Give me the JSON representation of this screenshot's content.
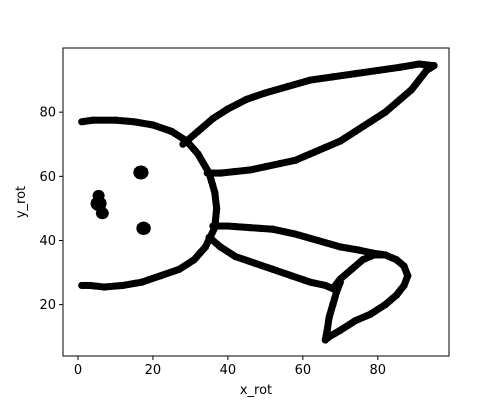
{
  "chart_data": {
    "type": "scatter",
    "title": "",
    "xlabel": "x_rot",
    "ylabel": "y_rot",
    "xlim": [
      -4,
      99
    ],
    "ylim": [
      4,
      100
    ],
    "xticks": [
      0,
      20,
      40,
      60,
      80
    ],
    "yticks": [
      20,
      40,
      60,
      80
    ],
    "grid": false,
    "marker_color": "#000000",
    "strokes": [
      [
        [
          1,
          77
        ],
        [
          4,
          77.5
        ],
        [
          10,
          77.5
        ],
        [
          15,
          77
        ],
        [
          20,
          76
        ],
        [
          25,
          74
        ],
        [
          29,
          71
        ],
        [
          32,
          67
        ],
        [
          35,
          61
        ],
        [
          36.5,
          55
        ],
        [
          37,
          50
        ],
        [
          36.5,
          44
        ],
        [
          34,
          38
        ],
        [
          31,
          34
        ],
        [
          27,
          31
        ],
        [
          22,
          29
        ],
        [
          17,
          27
        ],
        [
          12,
          26
        ],
        [
          7,
          25.5
        ],
        [
          3,
          26
        ],
        [
          1,
          26
        ]
      ],
      [
        [
          28,
          70
        ],
        [
          32,
          74
        ],
        [
          36,
          78
        ],
        [
          40,
          81
        ],
        [
          45,
          84
        ],
        [
          50,
          86
        ],
        [
          56,
          88
        ],
        [
          62,
          90
        ],
        [
          68,
          91
        ],
        [
          74,
          92
        ],
        [
          80,
          93
        ],
        [
          86,
          94
        ],
        [
          91,
          95
        ],
        [
          95,
          94.5
        ]
      ],
      [
        [
          95,
          94.5
        ],
        [
          93,
          93
        ],
        [
          91,
          90
        ],
        [
          89,
          87
        ],
        [
          86,
          84
        ],
        [
          82,
          80
        ],
        [
          78,
          77
        ],
        [
          74,
          74
        ],
        [
          70,
          71
        ],
        [
          66,
          69
        ],
        [
          62,
          67
        ],
        [
          58,
          65
        ],
        [
          54,
          64
        ],
        [
          50,
          63
        ],
        [
          46,
          62
        ],
        [
          42,
          61.5
        ],
        [
          38,
          61
        ],
        [
          34.5,
          61
        ]
      ],
      [
        [
          35,
          41
        ],
        [
          38,
          38
        ],
        [
          42,
          35
        ],
        [
          47,
          33
        ],
        [
          52,
          31
        ],
        [
          57,
          29
        ],
        [
          62,
          27
        ],
        [
          66,
          26
        ],
        [
          68,
          25
        ]
      ],
      [
        [
          36,
          44.5
        ],
        [
          40,
          44.5
        ],
        [
          46,
          44
        ],
        [
          52,
          43.5
        ],
        [
          58,
          42
        ],
        [
          64,
          40
        ],
        [
          70,
          38
        ],
        [
          75,
          37
        ],
        [
          79,
          36
        ],
        [
          82,
          35.5
        ]
      ],
      [
        [
          68,
          25
        ],
        [
          70,
          28
        ],
        [
          73,
          31
        ],
        [
          76,
          34
        ],
        [
          79,
          35.5
        ],
        [
          82,
          35.5
        ],
        [
          85,
          34
        ],
        [
          87,
          32
        ],
        [
          88,
          29
        ],
        [
          87,
          26
        ],
        [
          85,
          23
        ],
        [
          82,
          20
        ],
        [
          78,
          17
        ],
        [
          74,
          15
        ],
        [
          70,
          12
        ],
        [
          67,
          10
        ],
        [
          66,
          9
        ],
        [
          66.5,
          12
        ],
        [
          67,
          16
        ],
        [
          68,
          20
        ],
        [
          69,
          24
        ],
        [
          70,
          27
        ]
      ]
    ],
    "blobs": [
      {
        "cx": 16.8,
        "cy": 61.2,
        "r": 2.0
      },
      {
        "cx": 17.5,
        "cy": 43.8,
        "r": 1.8
      },
      {
        "cx": 5.5,
        "cy": 51.5,
        "r": 2.2
      },
      {
        "cx": 6.5,
        "cy": 48.5,
        "r": 1.4
      },
      {
        "cx": 5.5,
        "cy": 54.0,
        "r": 1.2
      }
    ]
  }
}
